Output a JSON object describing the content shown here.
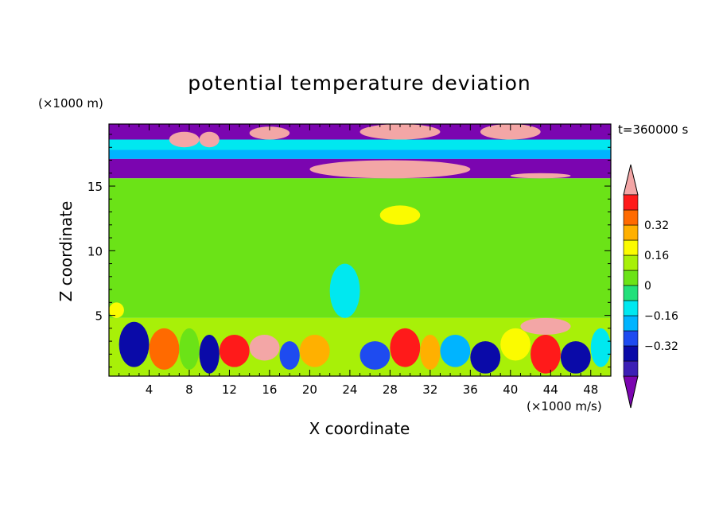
{
  "chart_data": {
    "type": "heatmap",
    "title": "potential temperature deviation",
    "xlabel": "X coordinate",
    "ylabel": "Z coordinate",
    "x_unit": "(×1000 m/s)",
    "y_unit": "(×1000 m)",
    "time_label": "t=360000 s",
    "xlim": [
      0,
      50
    ],
    "ylim": [
      0.3,
      19.8
    ],
    "x_ticks": [
      4,
      8,
      12,
      16,
      20,
      24,
      28,
      32,
      36,
      40,
      44,
      48
    ],
    "y_ticks": [
      5,
      10,
      15
    ],
    "colorbar": {
      "levels": [
        -0.48,
        -0.4,
        -0.32,
        -0.24,
        -0.16,
        -0.08,
        0,
        0.08,
        0.16,
        0.24,
        0.32,
        0.4,
        0.48
      ],
      "tick_labels": [
        "0.32",
        "0.16",
        "0",
        "−0.16",
        "−0.32"
      ],
      "tick_values": [
        0.32,
        0.16,
        0,
        -0.16,
        -0.32
      ],
      "colors": [
        "#7b05b0",
        "#3c1fb5",
        "#0a0aa8",
        "#1e4bf0",
        "#00b4ff",
        "#00e8f0",
        "#22e07a",
        "#6be317",
        "#a8f008",
        "#fbfb00",
        "#ffb000",
        "#ff6a00",
        "#ff1a1a",
        "#f3a6a6"
      ]
    },
    "bands": [
      {
        "z": [
          18.6,
          19.8
        ],
        "value": -0.5
      },
      {
        "z": [
          17.8,
          18.6
        ],
        "value": -0.1
      },
      {
        "z": [
          17.1,
          17.8
        ],
        "value": -0.2
      },
      {
        "z": [
          15.6,
          17.1
        ],
        "value": -0.5
      },
      {
        "z": [
          4.8,
          15.6
        ],
        "value": 0.02
      },
      {
        "z": [
          0.3,
          4.8
        ],
        "value": 0.1
      }
    ],
    "patches": [
      {
        "x": [
          6,
          9
        ],
        "z": [
          18.0,
          19.2
        ],
        "value": 0.5
      },
      {
        "x": [
          9,
          11
        ],
        "z": [
          18.0,
          19.2
        ],
        "value": 0.5
      },
      {
        "x": [
          14,
          18
        ],
        "z": [
          18.6,
          19.6
        ],
        "value": 0.5
      },
      {
        "x": [
          25,
          33
        ],
        "z": [
          18.6,
          19.8
        ],
        "value": 0.5
      },
      {
        "x": [
          37,
          43
        ],
        "z": [
          18.6,
          19.8
        ],
        "value": 0.5
      },
      {
        "x": [
          20,
          36
        ],
        "z": [
          15.6,
          17.0
        ],
        "value": 0.5
      },
      {
        "x": [
          40,
          46
        ],
        "z": [
          15.6,
          16.0
        ],
        "value": 0.5
      },
      {
        "x": [
          27,
          31
        ],
        "z": [
          12.0,
          13.5
        ],
        "value": 0.2
      },
      {
        "x": [
          22,
          25
        ],
        "z": [
          4.8,
          9.0
        ],
        "value": -0.1
      },
      {
        "x": [
          0,
          1.5
        ],
        "z": [
          4.8,
          6.0
        ],
        "value": 0.2
      },
      {
        "x": [
          41,
          46
        ],
        "z": [
          3.5,
          4.8
        ],
        "value": 0.5
      },
      {
        "x": [
          1,
          4
        ],
        "z": [
          1.0,
          4.5
        ],
        "value": -0.4
      },
      {
        "x": [
          4,
          7
        ],
        "z": [
          0.8,
          4.0
        ],
        "value": 0.35
      },
      {
        "x": [
          7,
          9
        ],
        "z": [
          0.8,
          4.0
        ],
        "value": 0.05
      },
      {
        "x": [
          9,
          11
        ],
        "z": [
          0.5,
          3.5
        ],
        "value": -0.35
      },
      {
        "x": [
          11,
          14
        ],
        "z": [
          1.0,
          3.5
        ],
        "value": 0.4
      },
      {
        "x": [
          14,
          17
        ],
        "z": [
          1.5,
          3.5
        ],
        "value": 0.5
      },
      {
        "x": [
          17,
          19
        ],
        "z": [
          0.8,
          3.0
        ],
        "value": -0.3
      },
      {
        "x": [
          19,
          22
        ],
        "z": [
          1.0,
          3.5
        ],
        "value": 0.3
      },
      {
        "x": [
          22,
          25
        ],
        "z": [
          0.5,
          4.5
        ],
        "value": 0.1
      },
      {
        "x": [
          25,
          28
        ],
        "z": [
          0.8,
          3.0
        ],
        "value": -0.3
      },
      {
        "x": [
          28,
          31
        ],
        "z": [
          1.0,
          4.0
        ],
        "value": 0.45
      },
      {
        "x": [
          31,
          33
        ],
        "z": [
          0.8,
          3.5
        ],
        "value": 0.25
      },
      {
        "x": [
          33,
          36
        ],
        "z": [
          1.0,
          3.5
        ],
        "value": -0.2
      },
      {
        "x": [
          36,
          39
        ],
        "z": [
          0.5,
          3.0
        ],
        "value": -0.4
      },
      {
        "x": [
          39,
          42
        ],
        "z": [
          1.5,
          4.0
        ],
        "value": 0.2
      },
      {
        "x": [
          42,
          45
        ],
        "z": [
          0.5,
          3.5
        ],
        "value": 0.4
      },
      {
        "x": [
          45,
          48
        ],
        "z": [
          0.5,
          3.0
        ],
        "value": -0.35
      },
      {
        "x": [
          48,
          50
        ],
        "z": [
          1.0,
          4.0
        ],
        "value": -0.1
      }
    ]
  }
}
